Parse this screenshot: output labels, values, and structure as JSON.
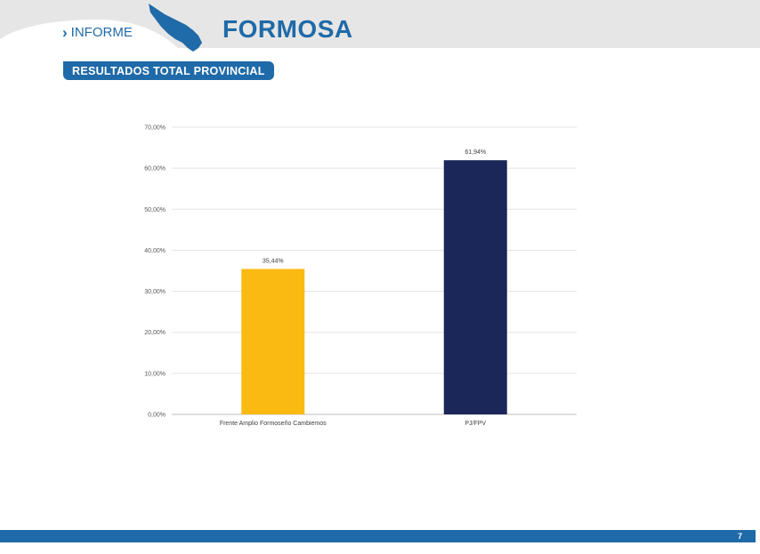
{
  "header": {
    "section_label": "INFORME",
    "province": "FORMOSA",
    "accent_color": "#1f6aa8",
    "background_color": "#e6e6e6"
  },
  "badge": {
    "label": "RESULTADOS TOTAL PROVINCIAL"
  },
  "chart_data": {
    "type": "bar",
    "categories": [
      "Frente Amplio Formoseño Cambiemos",
      "PJ/FPV"
    ],
    "values": [
      35.44,
      61.94
    ],
    "value_labels": [
      "35,44%",
      "61,94%"
    ],
    "colors": [
      "#fbba12",
      "#1b2659"
    ],
    "ylim": [
      0,
      70
    ],
    "yticks": [
      0,
      10,
      20,
      30,
      40,
      50,
      60,
      70
    ],
    "ytick_labels": [
      "0,00%",
      "10,00%",
      "20,00%",
      "30,00%",
      "40,00%",
      "50,00%",
      "60,00%",
      "70,00%"
    ],
    "grid": true,
    "legend": "none"
  },
  "footer": {
    "page_number": "7"
  }
}
